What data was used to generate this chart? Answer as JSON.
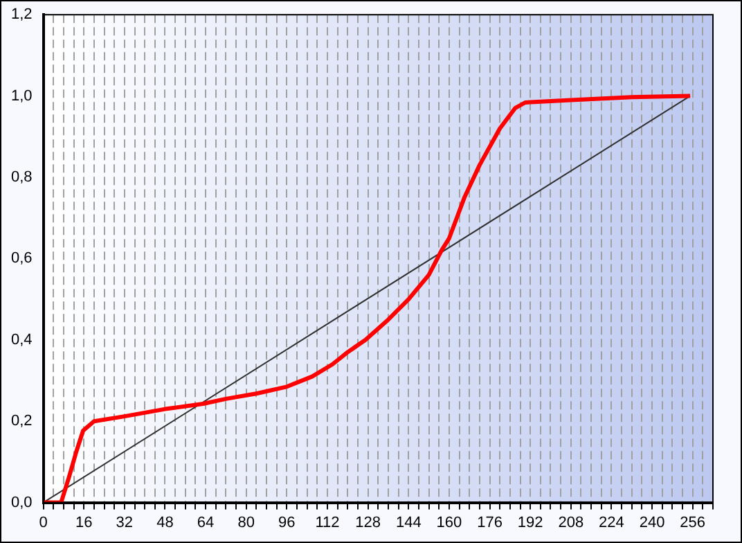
{
  "chart_data": {
    "type": "line",
    "xlim": [
      0,
      264
    ],
    "ylim": [
      0,
      1.2
    ],
    "xticks": [
      0,
      {
        "value": 4,
        "label": null
      },
      {
        "value": 8,
        "label": null
      },
      {
        "value": 12,
        "label": null
      },
      16,
      {
        "value": 20,
        "label": null
      },
      {
        "value": 24,
        "label": null
      },
      {
        "value": 28,
        "label": null
      },
      32,
      {
        "value": 36,
        "label": null
      },
      {
        "value": 40,
        "label": null
      },
      {
        "value": 44,
        "label": null
      },
      48,
      {
        "value": 52,
        "label": null
      },
      {
        "value": 56,
        "label": null
      },
      {
        "value": 60,
        "label": null
      },
      64,
      {
        "value": 68,
        "label": null
      },
      {
        "value": 72,
        "label": null
      },
      {
        "value": 76,
        "label": null
      },
      80,
      {
        "value": 84,
        "label": null
      },
      {
        "value": 88,
        "label": null
      },
      {
        "value": 92,
        "label": null
      },
      96,
      {
        "value": 100,
        "label": null
      },
      {
        "value": 104,
        "label": null
      },
      {
        "value": 108,
        "label": null
      },
      112,
      {
        "value": 116,
        "label": null
      },
      {
        "value": 120,
        "label": null
      },
      {
        "value": 124,
        "label": null
      },
      128,
      {
        "value": 132,
        "label": null
      },
      {
        "value": 136,
        "label": null
      },
      {
        "value": 140,
        "label": null
      },
      144,
      {
        "value": 148,
        "label": null
      },
      {
        "value": 152,
        "label": null
      },
      {
        "value": 156,
        "label": null
      },
      160,
      {
        "value": 164,
        "label": null
      },
      {
        "value": 168,
        "label": null
      },
      {
        "value": 172,
        "label": null
      },
      176,
      {
        "value": 180,
        "label": null
      },
      {
        "value": 184,
        "label": null
      },
      {
        "value": 188,
        "label": null
      },
      192,
      {
        "value": 196,
        "label": null
      },
      {
        "value": 200,
        "label": null
      },
      {
        "value": 204,
        "label": null
      },
      208,
      {
        "value": 212,
        "label": null
      },
      {
        "value": 216,
        "label": null
      },
      {
        "value": 220,
        "label": null
      },
      224,
      {
        "value": 228,
        "label": null
      },
      {
        "value": 232,
        "label": null
      },
      {
        "value": 236,
        "label": null
      },
      240,
      {
        "value": 244,
        "label": null
      },
      {
        "value": 248,
        "label": null
      },
      {
        "value": 252,
        "label": null
      },
      256,
      {
        "value": 260,
        "label": null
      },
      {
        "value": 264,
        "label": null
      }
    ],
    "yticks": [
      {
        "value": 0,
        "label": "0,0"
      },
      {
        "value": 0.2,
        "label": "0,2"
      },
      {
        "value": 0.4,
        "label": "0,4"
      },
      {
        "value": 0.6,
        "label": "0,6"
      },
      {
        "value": 0.8,
        "label": "0,8"
      },
      {
        "value": 1,
        "label": "1,0"
      },
      {
        "value": 1.2,
        "label": "1,2"
      }
    ],
    "grid": "x",
    "legend": false,
    "marker": "none",
    "line_style": "solid",
    "series": [
      {
        "color": "#ff0000",
        "x": [
          0,
          7,
          10,
          13,
          15.7,
          20,
          32,
          48,
          63,
          72,
          84,
          96,
          106,
          114,
          120,
          127,
          136,
          144,
          152,
          157,
          160,
          163,
          166,
          172,
          180,
          186,
          190,
          208,
          232,
          255
        ],
        "values": [
          0,
          0,
          0.06,
          0.125,
          0.177,
          0.2,
          0.212,
          0.23,
          0.243,
          0.255,
          0.268,
          0.285,
          0.31,
          0.34,
          0.37,
          0.4,
          0.45,
          0.5,
          0.56,
          0.62,
          0.65,
          0.7,
          0.75,
          0.83,
          0.92,
          0.97,
          0.984,
          0.99,
          0.997,
          1.0
        ]
      },
      {
        "color": "#303030",
        "x": [
          0,
          255
        ],
        "values": [
          0,
          1
        ]
      }
    ]
  }
}
